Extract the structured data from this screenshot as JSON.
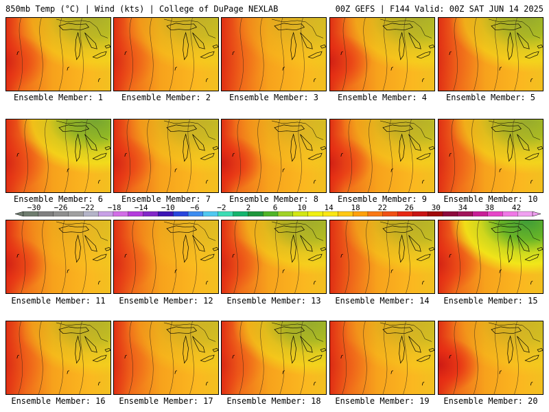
{
  "header": {
    "left": "850mb Temp (°C) | Wind (kts) | College of DuPage NEXLAB",
    "right": "00Z GEFS | F144 Valid: 00Z SAT JUN 14 2025"
  },
  "panels": [
    {
      "label": "Ensemble Member: 1"
    },
    {
      "label": "Ensemble Member: 2"
    },
    {
      "label": "Ensemble Member: 3"
    },
    {
      "label": "Ensemble Member: 4"
    },
    {
      "label": "Ensemble Member: 5"
    },
    {
      "label": "Ensemble Member: 6"
    },
    {
      "label": "Ensemble Member: 7"
    },
    {
      "label": "Ensemble Member: 8"
    },
    {
      "label": "Ensemble Member: 9"
    },
    {
      "label": "Ensemble Member: 10"
    },
    {
      "label": "Ensemble Member: 11"
    },
    {
      "label": "Ensemble Member: 12"
    },
    {
      "label": "Ensemble Member: 13"
    },
    {
      "label": "Ensemble Member: 14"
    },
    {
      "label": "Ensemble Member: 15"
    },
    {
      "label": "Ensemble Member: 16"
    },
    {
      "label": "Ensemble Member: 17"
    },
    {
      "label": "Ensemble Member: 18"
    },
    {
      "label": "Ensemble Member: 19"
    },
    {
      "label": "Ensemble Member: 20"
    }
  ],
  "colorbar": {
    "ticks": [
      "−30",
      "−26",
      "−22",
      "−18",
      "−14",
      "−10",
      "−6",
      "−2",
      "2",
      "6",
      "10",
      "14",
      "18",
      "22",
      "26",
      "30",
      "34",
      "38",
      "42"
    ],
    "colors": [
      "#6f7d6f",
      "#808080",
      "#8f8f8f",
      "#a0a0a0",
      "#b4b4c8",
      "#c8a0e6",
      "#d26ee6",
      "#b43cdc",
      "#8228c8",
      "#3c14b4",
      "#2846dc",
      "#3c8cf0",
      "#50c8f0",
      "#3cdcb4",
      "#14b46e",
      "#1e963c",
      "#50b428",
      "#a0d228",
      "#d2e614",
      "#f0f014",
      "#fae614",
      "#ffc814",
      "#ffa00a",
      "#fa7814",
      "#f05014",
      "#e62814",
      "#c81414",
      "#a00a0a",
      "#8c0a3c",
      "#a0145a",
      "#c81e96",
      "#e646c8",
      "#f078e6",
      "#f0a0f0"
    ]
  }
}
